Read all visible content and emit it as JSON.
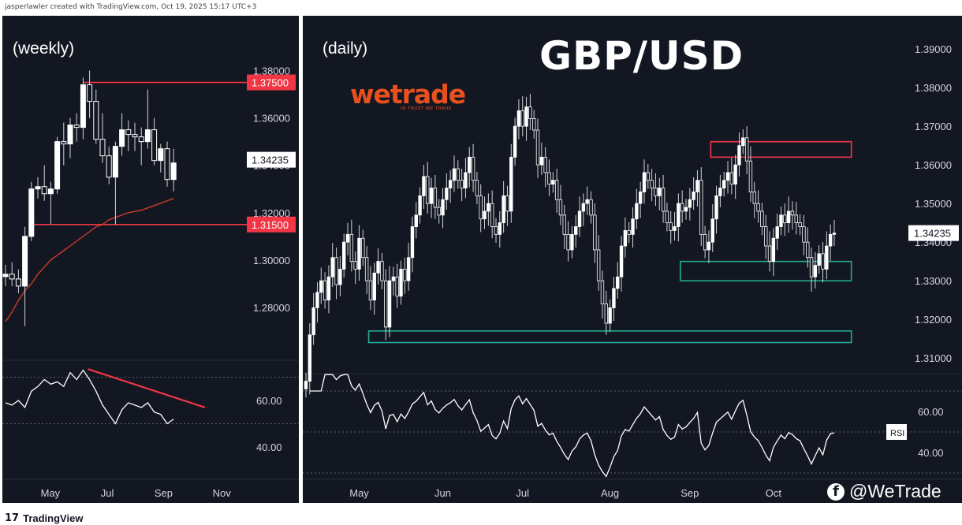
{
  "header": {
    "note": "jasperlawler created with TradingView.com, Oct 19, 2025 15:17 UTC+3"
  },
  "footer": {
    "brand": "TradingView",
    "icon": "tradingview-logo-icon"
  },
  "branding": {
    "title": "GBP/USD",
    "logo_text": "wetrade",
    "logo_tagline": "IN TRUST WE TRADE",
    "social_handle": "@WeTrade",
    "social_icon": "facebook-icon"
  },
  "colors": {
    "background": "#131722",
    "up": "#ffffff",
    "down": "#ffffff",
    "resistance": "#f23645",
    "support": "#22ab94",
    "ma": "#c0392b",
    "brand": "#e8501e"
  },
  "chart_data": [
    {
      "type": "candlestick",
      "title": "(weekly)",
      "ylim": [
        1.266,
        1.3835
      ],
      "yticks": [
        "1.28000",
        "1.30000",
        "1.32000",
        "1.34000",
        "1.36000",
        "1.38000"
      ],
      "xticks": [
        {
          "label": "May",
          "x": 4.5
        },
        {
          "label": "Jul",
          "x": 13.3
        },
        {
          "label": "Sep",
          "x": 22
        },
        {
          "label": "Nov",
          "x": 31
        }
      ],
      "last_price": "1.34235",
      "levels": [
        {
          "label": "1.37500",
          "value": 1.375,
          "from": 12
        },
        {
          "label": "1.31500",
          "value": 1.315,
          "from": 4
        }
      ],
      "candles": [
        [
          1.293,
          1.298,
          1.289,
          1.294
        ],
        [
          1.294,
          1.299,
          1.289,
          1.292
        ],
        [
          1.292,
          1.296,
          1.286,
          1.289
        ],
        [
          1.289,
          1.314,
          1.272,
          1.31
        ],
        [
          1.31,
          1.333,
          1.308,
          1.33
        ],
        [
          1.33,
          1.335,
          1.326,
          1.331
        ],
        [
          1.331,
          1.34,
          1.325,
          1.328
        ],
        [
          1.328,
          1.333,
          1.315,
          1.33
        ],
        [
          1.33,
          1.352,
          1.328,
          1.35
        ],
        [
          1.35,
          1.358,
          1.34,
          1.349
        ],
        [
          1.349,
          1.36,
          1.343,
          1.357
        ],
        [
          1.357,
          1.362,
          1.35,
          1.356
        ],
        [
          1.356,
          1.377,
          1.351,
          1.374
        ],
        [
          1.374,
          1.38,
          1.36,
          1.367
        ],
        [
          1.367,
          1.372,
          1.349,
          1.351
        ],
        [
          1.351,
          1.362,
          1.341,
          1.344
        ],
        [
          1.344,
          1.348,
          1.332,
          1.335
        ],
        [
          1.335,
          1.35,
          1.315,
          1.348
        ],
        [
          1.348,
          1.362,
          1.344,
          1.355
        ],
        [
          1.355,
          1.359,
          1.346,
          1.353
        ],
        [
          1.353,
          1.358,
          1.346,
          1.352
        ],
        [
          1.352,
          1.356,
          1.34,
          1.35
        ],
        [
          1.35,
          1.372,
          1.347,
          1.355
        ],
        [
          1.355,
          1.36,
          1.34,
          1.342
        ],
        [
          1.342,
          1.349,
          1.337,
          1.347
        ],
        [
          1.347,
          1.35,
          1.331,
          1.334
        ],
        [
          1.334,
          1.347,
          1.329,
          1.341
        ]
      ],
      "ma": [
        1.274,
        1.278,
        1.283,
        1.287,
        1.29,
        1.294,
        1.297,
        1.3,
        1.302,
        1.304,
        1.306,
        1.308,
        1.31,
        1.312,
        1.314,
        1.315,
        1.317,
        1.318,
        1.319,
        1.32,
        1.3205,
        1.321,
        1.322,
        1.323,
        1.324,
        1.325,
        1.326
      ],
      "rsi": {
        "yticks": [
          {
            "label": "60.00",
            "value": 60
          },
          {
            "label": "40.00",
            "value": 40
          }
        ],
        "guides": [
          70,
          50
        ],
        "values": [
          59,
          58,
          60,
          57,
          64,
          66,
          69,
          67,
          68,
          66,
          72,
          69,
          73,
          69,
          64,
          58,
          54,
          50,
          56,
          59,
          58,
          57,
          59,
          55,
          54,
          50,
          52
        ],
        "trendline": [
          [
            13,
            73.5
          ],
          [
            34.5,
            57
          ]
        ]
      }
    },
    {
      "type": "candlestick",
      "title": "(daily)",
      "ylim": [
        1.3035,
        1.3935
      ],
      "yticks": [
        "1.31000",
        "1.32000",
        "1.33000",
        "1.34000",
        "1.35000",
        "1.36000",
        "1.37000",
        "1.38000",
        "1.39000"
      ],
      "xticks": [
        {
          "label": "May",
          "x": 14
        },
        {
          "label": "Jun",
          "x": 36
        },
        {
          "label": "Jul",
          "x": 57
        },
        {
          "label": "Aug",
          "x": 80
        },
        {
          "label": "Sep",
          "x": 101
        },
        {
          "label": "Oct",
          "x": 123
        }
      ],
      "last_price": "1.34235",
      "zones": [
        {
          "top": 1.366,
          "bottom": 1.362,
          "x0": 106.5,
          "x1": 143.5,
          "color": "resistance"
        },
        {
          "top": 1.335,
          "bottom": 1.33,
          "x0": 98.5,
          "x1": 143.5,
          "color": "support"
        },
        {
          "top": 1.317,
          "bottom": 1.314,
          "x0": 16.5,
          "x1": 143.5,
          "color": "support"
        }
      ],
      "closes": [
        1.304,
        1.316,
        1.323,
        1.327,
        1.33,
        1.325,
        1.331,
        1.336,
        1.329,
        1.333,
        1.34,
        1.342,
        1.335,
        1.333,
        1.341,
        1.336,
        1.33,
        1.325,
        1.332,
        1.335,
        1.33,
        1.318,
        1.33,
        1.331,
        1.326,
        1.333,
        1.33,
        1.336,
        1.344,
        1.347,
        1.352,
        1.357,
        1.35,
        1.354,
        1.349,
        1.347,
        1.351,
        1.354,
        1.356,
        1.359,
        1.356,
        1.354,
        1.358,
        1.362,
        1.356,
        1.352,
        1.346,
        1.348,
        1.35,
        1.344,
        1.342,
        1.345,
        1.352,
        1.348,
        1.362,
        1.37,
        1.374,
        1.37,
        1.375,
        1.372,
        1.369,
        1.36,
        1.362,
        1.358,
        1.355,
        1.356,
        1.351,
        1.347,
        1.342,
        1.338,
        1.342,
        1.344,
        1.348,
        1.35,
        1.351,
        1.347,
        1.338,
        1.33,
        1.324,
        1.319,
        1.323,
        1.328,
        1.331,
        1.339,
        1.343,
        1.342,
        1.346,
        1.35,
        1.353,
        1.358,
        1.356,
        1.354,
        1.352,
        1.354,
        1.348,
        1.345,
        1.343,
        1.344,
        1.35,
        1.348,
        1.349,
        1.351,
        1.353,
        1.356,
        1.342,
        1.338,
        1.34,
        1.346,
        1.352,
        1.354,
        1.356,
        1.358,
        1.355,
        1.36,
        1.365,
        1.367,
        1.361,
        1.353,
        1.35,
        1.348,
        1.344,
        1.339,
        1.335,
        1.341,
        1.344,
        1.347,
        1.345,
        1.348,
        1.347,
        1.345,
        1.344,
        1.34,
        1.336,
        1.331,
        1.334,
        1.337,
        1.333,
        1.339,
        1.342,
        1.34235
      ],
      "rsi": {
        "yticks": [
          {
            "label": "60.00",
            "value": 60
          },
          {
            "label": "40.00",
            "value": 40
          }
        ],
        "guides": [
          70,
          50,
          30
        ],
        "label": "RSI"
      }
    }
  ]
}
